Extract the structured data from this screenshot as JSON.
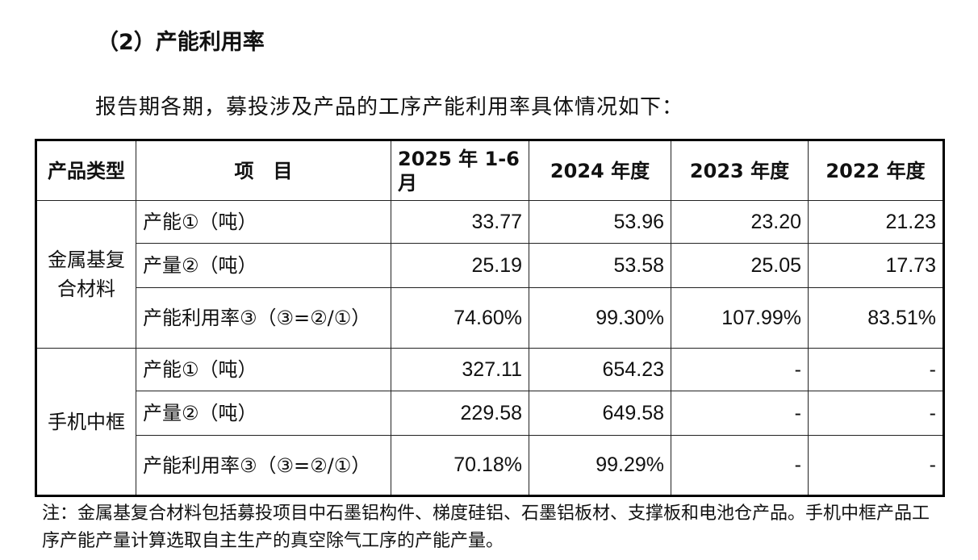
{
  "title": "（2）产能利用率",
  "intro": "报告期各期，募投涉及产品的工序产能利用率具体情况如下：",
  "table": {
    "headers": [
      "产品类型",
      "项　目",
      "2025 年 1-6 月",
      "2024 年度",
      "2023 年度",
      "2022 年度"
    ],
    "groups": [
      {
        "category": "金属基复合材料",
        "rows": [
          {
            "item": "产能①（吨）",
            "values": [
              "33.77",
              "53.96",
              "23.20",
              "21.23"
            ]
          },
          {
            "item": "产量②（吨）",
            "values": [
              "25.19",
              "53.58",
              "25.05",
              "17.73"
            ]
          },
          {
            "item": "产能利用率③（③=②/①）",
            "values": [
              "74.60%",
              "99.30%",
              "107.99%",
              "83.51%"
            ]
          }
        ]
      },
      {
        "category": "手机中框",
        "rows": [
          {
            "item": "产能①（吨）",
            "values": [
              "327.11",
              "654.23",
              "-",
              "-"
            ]
          },
          {
            "item": "产量②（吨）",
            "values": [
              "229.58",
              "649.58",
              "-",
              "-"
            ]
          },
          {
            "item": "产能利用率③（③=②/①）",
            "values": [
              "70.18%",
              "99.29%",
              "-",
              "-"
            ]
          }
        ]
      }
    ]
  },
  "note": "注：金属基复合材料包括募投项目中石墨铝构件、梯度硅铝、石墨铝板材、支撑板和电池仓产品。手机中框产品工序产能产量计算选取自主生产的真空除气工序的产能产量。"
}
